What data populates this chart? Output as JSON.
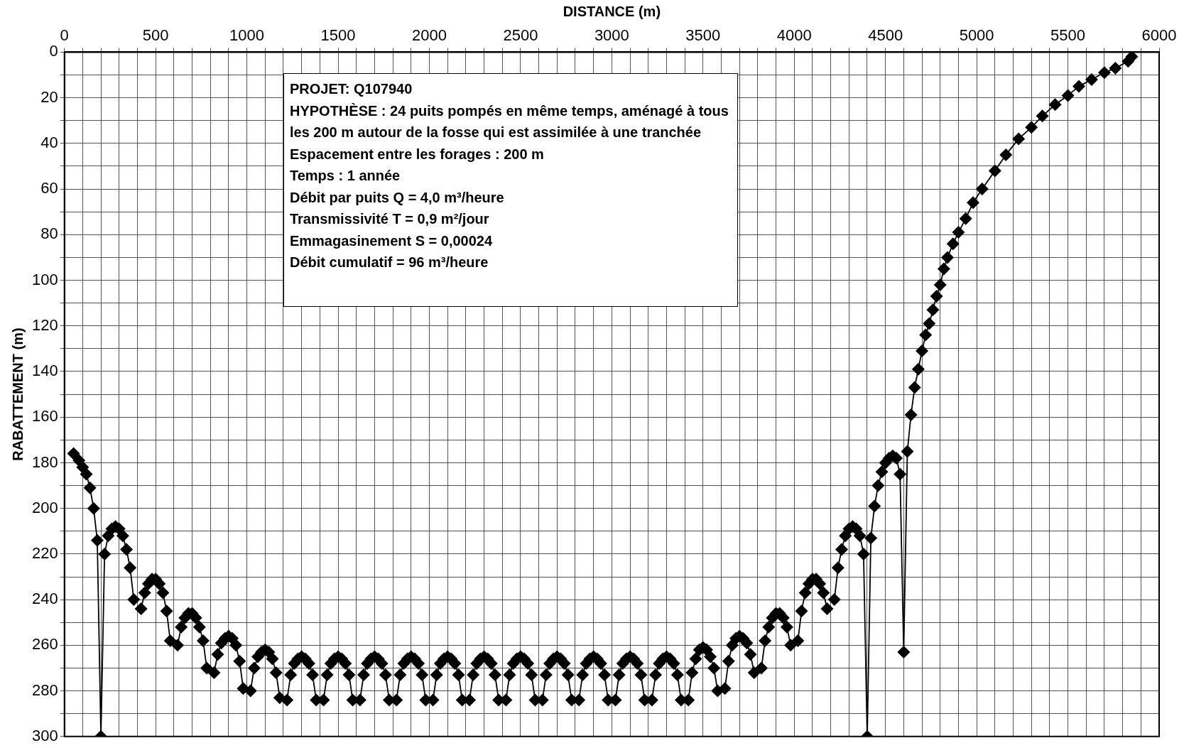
{
  "chart_data": {
    "type": "line",
    "xlabel": "DISTANCE (m)",
    "ylabel": "RABATTEMENT (m)",
    "annotations": [
      "PROJET: Q107940",
      "HYPOTHÈSE : 24 puits pompés en même temps, aménagé à tous",
      "les 200 m autour de la fosse qui est assimilée à une tranchée",
      "Espacement entre les forages : 200 m",
      "Temps : 1 année",
      "Débit par puits Q = 4,0 m³/heure",
      "Transmissivité T = 0,9 m²/jour",
      "Emmagasinement S = 0,00024",
      "Débit cumulatif = 96 m³/heure"
    ],
    "x": [
      50,
      80,
      100,
      120,
      140,
      160,
      180,
      200,
      220,
      240,
      260,
      280,
      300,
      320,
      340,
      360,
      380,
      400,
      420,
      440,
      460,
      480,
      500,
      520,
      540,
      560,
      580,
      600,
      620,
      640,
      660,
      680,
      700,
      720,
      740,
      760,
      780,
      800,
      820,
      840,
      860,
      880,
      900,
      920,
      940,
      960,
      980,
      1000,
      1020,
      1040,
      1060,
      1080,
      1100,
      1120,
      1140,
      1160,
      1180,
      1200,
      1220,
      1240,
      1260,
      1280,
      1300,
      1320,
      1340,
      1360,
      1380,
      1400,
      1420,
      1440,
      1460,
      1480,
      1500,
      1520,
      1540,
      1560,
      1580,
      1600,
      1620,
      1640,
      1660,
      1680,
      1700,
      1720,
      1740,
      1760,
      1780,
      1800,
      1820,
      1840,
      1860,
      1880,
      1900,
      1920,
      1940,
      1960,
      1980,
      2000,
      2020,
      2040,
      2060,
      2080,
      2100,
      2120,
      2140,
      2160,
      2180,
      2200,
      2220,
      2240,
      2260,
      2280,
      2300,
      2320,
      2340,
      2360,
      2380,
      2400,
      2420,
      2440,
      2460,
      2480,
      2500,
      2520,
      2540,
      2560,
      2580,
      2600,
      2620,
      2640,
      2660,
      2680,
      2700,
      2720,
      2740,
      2760,
      2780,
      2800,
      2820,
      2840,
      2860,
      2880,
      2900,
      2920,
      2940,
      2960,
      2980,
      3000,
      3020,
      3040,
      3060,
      3080,
      3100,
      3120,
      3140,
      3160,
      3180,
      3200,
      3220,
      3240,
      3260,
      3280,
      3300,
      3320,
      3340,
      3360,
      3380,
      3400,
      3420,
      3440,
      3460,
      3480,
      3500,
      3520,
      3540,
      3560,
      3580,
      3600,
      3620,
      3640,
      3660,
      3680,
      3700,
      3720,
      3740,
      3760,
      3780,
      3800,
      3820,
      3840,
      3860,
      3880,
      3900,
      3920,
      3940,
      3960,
      3980,
      4000,
      4020,
      4040,
      4060,
      4080,
      4100,
      4120,
      4140,
      4160,
      4180,
      4200,
      4220,
      4240,
      4260,
      4280,
      4300,
      4320,
      4340,
      4360,
      4380,
      4400,
      4420,
      4440,
      4460,
      4480,
      4500,
      4520,
      4540,
      4560,
      4580,
      4600,
      4620,
      4640,
      4660,
      4680,
      4700,
      4720,
      4740,
      4760,
      4780,
      4800,
      4820,
      4840,
      4870,
      4900,
      4940,
      4980,
      5030,
      5100,
      5160,
      5230,
      5300,
      5360,
      5430,
      5500,
      5560,
      5630,
      5700,
      5760,
      5830,
      5850
    ],
    "values": [
      176,
      179,
      182,
      185,
      191,
      200,
      214,
      300,
      220,
      212,
      209,
      208,
      209,
      212,
      218,
      226,
      240,
      null,
      244,
      237,
      233,
      231,
      231,
      233,
      237,
      245,
      258,
      null,
      260,
      252,
      248,
      246,
      246,
      248,
      252,
      258,
      270,
      null,
      272,
      264,
      259,
      257,
      256,
      257,
      260,
      267,
      279,
      null,
      280,
      270,
      265,
      263,
      262,
      263,
      266,
      272,
      283,
      null,
      284,
      273,
      268,
      266,
      265,
      266,
      268,
      273,
      284,
      null,
      284,
      273,
      268,
      266,
      265,
      266,
      268,
      273,
      284,
      null,
      284,
      273,
      268,
      266,
      265,
      266,
      268,
      273,
      284,
      null,
      284,
      273,
      268,
      266,
      265,
      266,
      268,
      273,
      284,
      null,
      284,
      273,
      268,
      266,
      265,
      266,
      268,
      273,
      284,
      null,
      284,
      273,
      268,
      266,
      265,
      266,
      268,
      273,
      284,
      null,
      284,
      273,
      268,
      266,
      265,
      266,
      268,
      273,
      284,
      null,
      284,
      273,
      268,
      266,
      265,
      266,
      268,
      273,
      284,
      null,
      284,
      273,
      268,
      266,
      265,
      266,
      268,
      273,
      284,
      null,
      284,
      273,
      268,
      266,
      265,
      266,
      268,
      273,
      284,
      null,
      284,
      273,
      268,
      266,
      265,
      266,
      268,
      273,
      284,
      null,
      284,
      272,
      266,
      262,
      261,
      262,
      265,
      270,
      280,
      null,
      279,
      267,
      260,
      257,
      256,
      257,
      259,
      264,
      272,
      null,
      270,
      258,
      252,
      248,
      246,
      246,
      248,
      252,
      260,
      null,
      258,
      245,
      237,
      233,
      231,
      231,
      233,
      237,
      244,
      null,
      240,
      226,
      218,
      212,
      209,
      208,
      209,
      212,
      220,
      300,
      213,
      199,
      190,
      184,
      180,
      178,
      177,
      178,
      185,
      263,
      175,
      159,
      147,
      139,
      131,
      124,
      119,
      113,
      107,
      102,
      95,
      90,
      84,
      79,
      73,
      66,
      60,
      52,
      45,
      38,
      33,
      28,
      23,
      19,
      15,
      12,
      9,
      7,
      4,
      2
    ],
    "color": "#000000",
    "marker": "diamond",
    "line_style": "solid",
    "xlim": [
      0,
      6000
    ],
    "ylim": [
      300,
      0
    ],
    "xticks": [
      0,
      {
        "value": 100,
        "label": null
      },
      {
        "value": 200,
        "label": null
      },
      {
        "value": 300,
        "label": null
      },
      {
        "value": 400,
        "label": null
      },
      500,
      {
        "value": 600,
        "label": null
      },
      {
        "value": 700,
        "label": null
      },
      {
        "value": 800,
        "label": null
      },
      {
        "value": 900,
        "label": null
      },
      1000,
      {
        "value": 1100,
        "label": null
      },
      {
        "value": 1200,
        "label": null
      },
      {
        "value": 1300,
        "label": null
      },
      {
        "value": 1400,
        "label": null
      },
      1500,
      {
        "value": 1600,
        "label": null
      },
      {
        "value": 1700,
        "label": null
      },
      {
        "value": 1800,
        "label": null
      },
      {
        "value": 1900,
        "label": null
      },
      2000,
      {
        "value": 2100,
        "label": null
      },
      {
        "value": 2200,
        "label": null
      },
      {
        "value": 2300,
        "label": null
      },
      {
        "value": 2400,
        "label": null
      },
      2500,
      {
        "value": 2600,
        "label": null
      },
      {
        "value": 2700,
        "label": null
      },
      {
        "value": 2800,
        "label": null
      },
      {
        "value": 2900,
        "label": null
      },
      3000,
      {
        "value": 3100,
        "label": null
      },
      {
        "value": 3200,
        "label": null
      },
      {
        "value": 3300,
        "label": null
      },
      {
        "value": 3400,
        "label": null
      },
      3500,
      {
        "value": 3600,
        "label": null
      },
      {
        "value": 3700,
        "label": null
      },
      {
        "value": 3800,
        "label": null
      },
      {
        "value": 3900,
        "label": null
      },
      4000,
      {
        "value": 4100,
        "label": null
      },
      {
        "value": 4200,
        "label": null
      },
      {
        "value": 4300,
        "label": null
      },
      {
        "value": 4400,
        "label": null
      },
      4500,
      {
        "value": 4600,
        "label": null
      },
      {
        "value": 4700,
        "label": null
      },
      {
        "value": 4800,
        "label": null
      },
      {
        "value": 4900,
        "label": null
      },
      5000,
      {
        "value": 5100,
        "label": null
      },
      {
        "value": 5200,
        "label": null
      },
      {
        "value": 5300,
        "label": null
      },
      {
        "value": 5400,
        "label": null
      },
      5500,
      {
        "value": 5600,
        "label": null
      },
      {
        "value": 5700,
        "label": null
      },
      {
        "value": 5800,
        "label": null
      },
      {
        "value": 5900,
        "label": null
      },
      6000
    ],
    "yticks": [
      0,
      {
        "value": 10,
        "label": null
      },
      20,
      {
        "value": 30,
        "label": null
      },
      40,
      {
        "value": 50,
        "label": null
      },
      60,
      {
        "value": 70,
        "label": null
      },
      80,
      {
        "value": 90,
        "label": null
      },
      100,
      {
        "value": 110,
        "label": null
      },
      120,
      {
        "value": 130,
        "label": null
      },
      140,
      {
        "value": 150,
        "label": null
      },
      160,
      {
        "value": 170,
        "label": null
      },
      180,
      {
        "value": 190,
        "label": null
      },
      200,
      {
        "value": 210,
        "label": null
      },
      220,
      {
        "value": 230,
        "label": null
      },
      240,
      {
        "value": 250,
        "label": null
      },
      260,
      {
        "value": 270,
        "label": null
      },
      280,
      {
        "value": 290,
        "label": null
      },
      300
    ],
    "grid": true,
    "legend": false
  }
}
